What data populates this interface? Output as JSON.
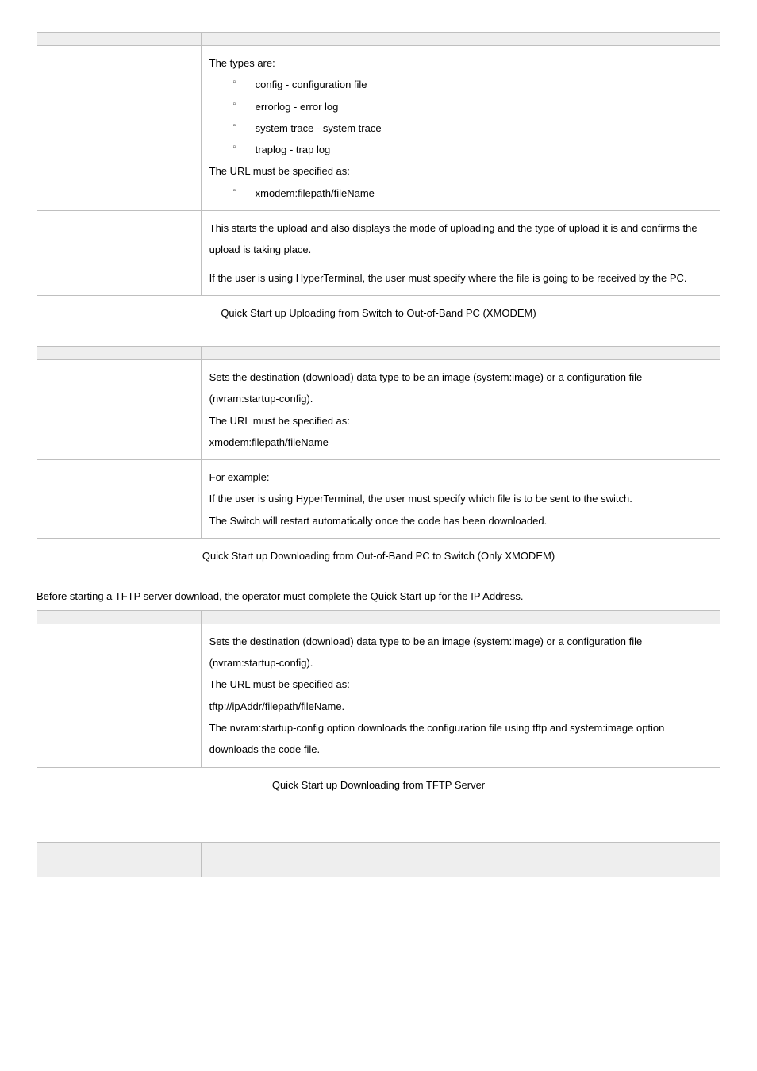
{
  "table1": {
    "row1": {
      "intro": "The types are:",
      "b1": "config - configuration file",
      "b2": "errorlog - error log",
      "b3": "system trace - system trace",
      "b4": "traplog - trap log",
      "url_intro": "The URL must be specified as:",
      "url_b1": "xmodem:filepath/fileName"
    },
    "row2": {
      "p1": "This starts the upload and also displays the mode of uploading and the type of upload it is and confirms the upload is taking place.",
      "p2": "If the user is using HyperTerminal, the user must specify where the file is going to be received by the PC."
    },
    "caption": "Quick Start up Uploading from Switch to Out-of-Band PC (XMODEM)"
  },
  "table2": {
    "row1": {
      "p1": "Sets the destination (download) data type to be an image (system:image) or a configuration file (nvram:startup-config).",
      "p2": "The URL must be specified as:",
      "p3": "xmodem:filepath/fileName"
    },
    "row2": {
      "p1": "For example:",
      "p2": "If the user is using HyperTerminal, the user must specify which file is to be sent to the switch.",
      "p3": "The Switch will restart automatically once the code has been downloaded."
    },
    "caption": "Quick Start up Downloading from Out-of-Band PC to Switch (Only XMODEM)"
  },
  "tftp_intro": "Before starting a TFTP server download, the operator must complete the Quick Start up for the IP Address.",
  "table3": {
    "row1": {
      "p1": "Sets the destination (download) data type to be an image (system:image) or a configuration file (nvram:startup-config).",
      "p2": "The URL must be specified as:",
      "p3": "tftp://ipAddr/filepath/fileName.",
      "p4": "The nvram:startup-config option downloads the configuration file using tftp and system:image option downloads the code file."
    },
    "caption": "Quick Start up Downloading from TFTP Server"
  }
}
